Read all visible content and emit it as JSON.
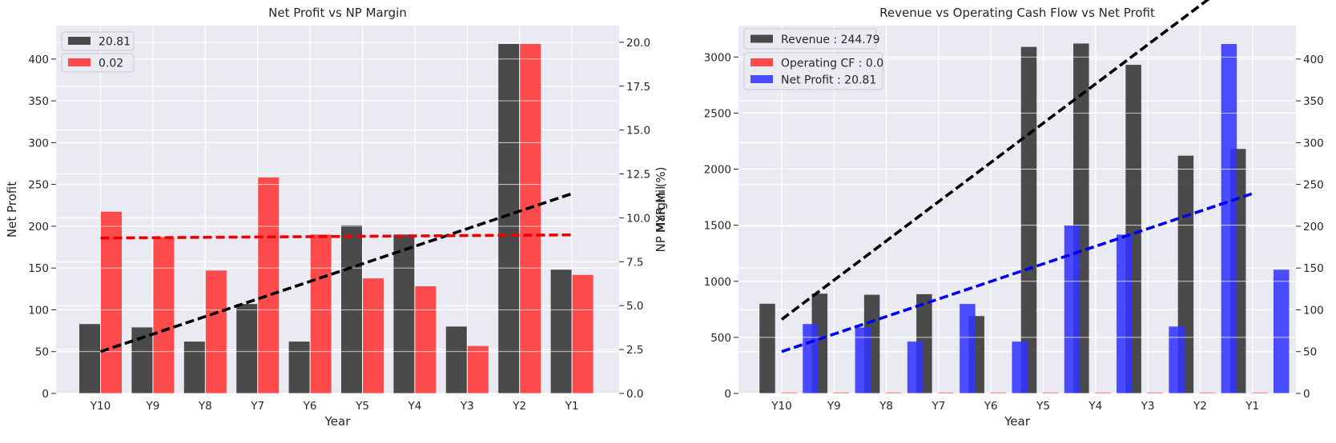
{
  "chart_data": [
    {
      "type": "bar",
      "title": "Net Profit vs NP Margin",
      "xlabel": "Year",
      "ylabel": "Net Profit",
      "y2label": "NP Margin (%)",
      "categories": [
        "Y10",
        "Y9",
        "Y8",
        "Y7",
        "Y6",
        "Y5",
        "Y4",
        "Y3",
        "Y2",
        "Y1"
      ],
      "ylim": [
        0,
        440
      ],
      "y2lim": [
        0,
        20.95
      ],
      "yticks": [
        0,
        50,
        100,
        150,
        200,
        250,
        300,
        350,
        400
      ],
      "y2ticks": [
        0,
        2.5,
        5,
        7.5,
        10,
        12.5,
        15,
        17.5,
        20
      ],
      "y2ticklabels": [
        "0.0",
        "2.5",
        "5.0",
        "7.5",
        "10.0",
        "12.5",
        "15.0",
        "17.5",
        "20.0"
      ],
      "grid": true,
      "legend_position": "top-left",
      "series": [
        {
          "name": "20.81",
          "axis": "left",
          "color": "#333333",
          "values": [
            83,
            79,
            62,
            107,
            62,
            201,
            190,
            80,
            418,
            148
          ]
        },
        {
          "name": "0.02",
          "axis": "right",
          "color": "#ff3333",
          "values": [
            10.35,
            8.9,
            7.0,
            12.3,
            9.05,
            6.55,
            6.1,
            2.7,
            19.9,
            6.75
          ]
        }
      ],
      "trendlines": [
        {
          "axis": "left",
          "color": "#000000",
          "values": [
            50,
            71,
            92,
            113,
            134,
            155,
            176,
            197,
            218,
            239
          ]
        },
        {
          "axis": "right",
          "color": "#ee0000",
          "values": [
            8.85,
            8.87,
            8.89,
            8.91,
            8.93,
            8.95,
            8.97,
            8.99,
            9.01,
            9.03
          ]
        }
      ]
    },
    {
      "type": "bar",
      "title": "Revenue vs Operating Cash Flow vs Net Profit",
      "xlabel": "Year",
      "ylabel": "MYR Mil",
      "categories": [
        "Y10",
        "Y9",
        "Y8",
        "Y7",
        "Y6",
        "Y5",
        "Y4",
        "Y3",
        "Y2",
        "Y1"
      ],
      "ylim": [
        0,
        3280
      ],
      "y2lim": [
        0,
        440
      ],
      "yticks": [
        0,
        500,
        1000,
        1500,
        2000,
        2500,
        3000
      ],
      "y2ticks": [
        0,
        50,
        100,
        150,
        200,
        250,
        300,
        350,
        400
      ],
      "grid": true,
      "legend_position": "top-left",
      "series": [
        {
          "name": "Revenue : 244.79",
          "axis": "left",
          "color": "#333333",
          "values": [
            800,
            890,
            880,
            885,
            690,
            3090,
            3120,
            2930,
            2120,
            2180
          ]
        },
        {
          "name": "Operating CF : 0.0",
          "axis": "left",
          "color": "#ff3333",
          "values": [
            8,
            8,
            8,
            8,
            8,
            8,
            8,
            8,
            8,
            8
          ]
        },
        {
          "name": "Net Profit : 20.81",
          "axis": "right",
          "color": "#3333ff",
          "values": [
            83,
            79,
            62,
            107,
            62,
            201,
            190,
            80,
            418,
            148
          ]
        }
      ],
      "trendlines": [
        {
          "axis": "left",
          "color": "#000000",
          "values": [
            660,
            1010,
            1360,
            1710,
            2060,
            2410,
            2760,
            3110,
            3460,
            3810
          ]
        },
        {
          "axis": "right",
          "color": "#0000ee",
          "values": [
            50,
            71,
            92,
            113,
            134,
            155,
            176,
            197,
            218,
            239
          ]
        }
      ]
    }
  ]
}
